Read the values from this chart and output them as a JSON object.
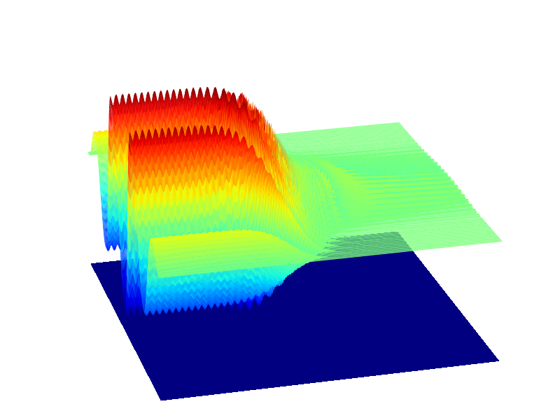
{
  "nx": 500,
  "ny": 120,
  "x_range": [
    0,
    15
  ],
  "y_range": [
    0,
    6
  ],
  "slow_freq_y": 0.6,
  "fast_freq_y": 5.0,
  "transition_x": 7.0,
  "transition_sharpness": 1.8,
  "slow_amplitude": 1.0,
  "fast_amplitude": 0.22,
  "ripple_freq_x": 3.5,
  "ripple_amplitude": 0.06,
  "dark_blue": [
    0.0,
    0.0,
    0.5,
    1.0
  ],
  "colormap": "jet",
  "elev": 22,
  "azim": -105,
  "figsize": [
    8.0,
    5.77
  ],
  "dpi": 100,
  "zlim_scale": 1.15
}
